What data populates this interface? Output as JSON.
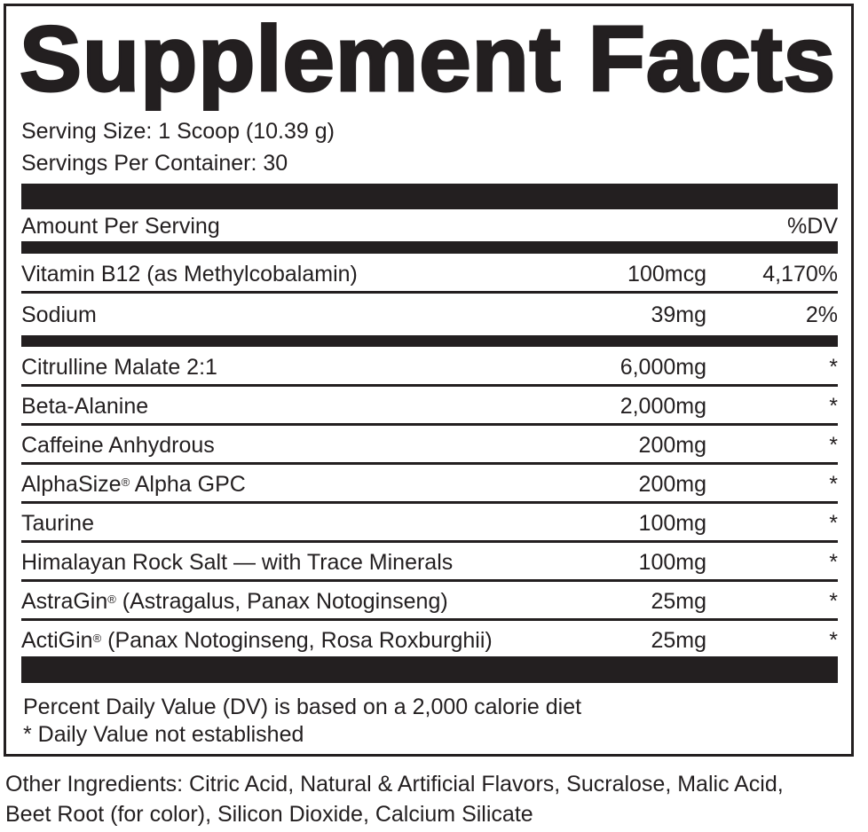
{
  "title": "Supplement Facts",
  "serving_size": "Serving Size: 1 Scoop (10.39 g)",
  "servings_per_container": "Servings Per Container: 30",
  "header": {
    "amount": "Amount Per Serving",
    "dv": "%DV"
  },
  "vitamins": [
    {
      "name": "Vitamin B12 (as Methylcobalamin)",
      "amount": "100mcg",
      "dv": "4,170%"
    },
    {
      "name": "Sodium",
      "amount": "39mg",
      "dv": "2%"
    }
  ],
  "ingredients": [
    {
      "name": "Citrulline Malate 2:1",
      "reg": "",
      "rest": "",
      "amount": "6,000mg",
      "dv": "*"
    },
    {
      "name": "Beta-Alanine",
      "reg": "",
      "rest": "",
      "amount": "2,000mg",
      "dv": "*"
    },
    {
      "name": "Caffeine Anhydrous",
      "reg": "",
      "rest": "",
      "amount": "200mg",
      "dv": "*"
    },
    {
      "name": "AlphaSize",
      "reg": "®",
      "rest": " Alpha GPC",
      "amount": "200mg",
      "dv": "*"
    },
    {
      "name": "Taurine",
      "reg": "",
      "rest": "",
      "amount": "100mg",
      "dv": "*"
    },
    {
      "name": "Himalayan Rock Salt — with Trace Minerals",
      "reg": "",
      "rest": "",
      "amount": "100mg",
      "dv": "*"
    },
    {
      "name": "AstraGin",
      "reg": "®",
      "rest": " (Astragalus, Panax Notoginseng)",
      "amount": "25mg",
      "dv": "*"
    },
    {
      "name": "ActiGin",
      "reg": "®",
      "rest": " (Panax Notoginseng, Rosa Roxburghii)",
      "amount": "25mg",
      "dv": "*"
    }
  ],
  "footnotes": [
    "Percent Daily Value (DV) is based on a 2,000 calorie diet",
    "* Daily Value not established"
  ],
  "other_ingredients": [
    "Other Ingredients: Citric Acid, Natural & Artificial Flavors, Sucralose, Malic Acid,",
    "Beet Root (for color), Silicon Dioxide, Calcium Silicate"
  ]
}
